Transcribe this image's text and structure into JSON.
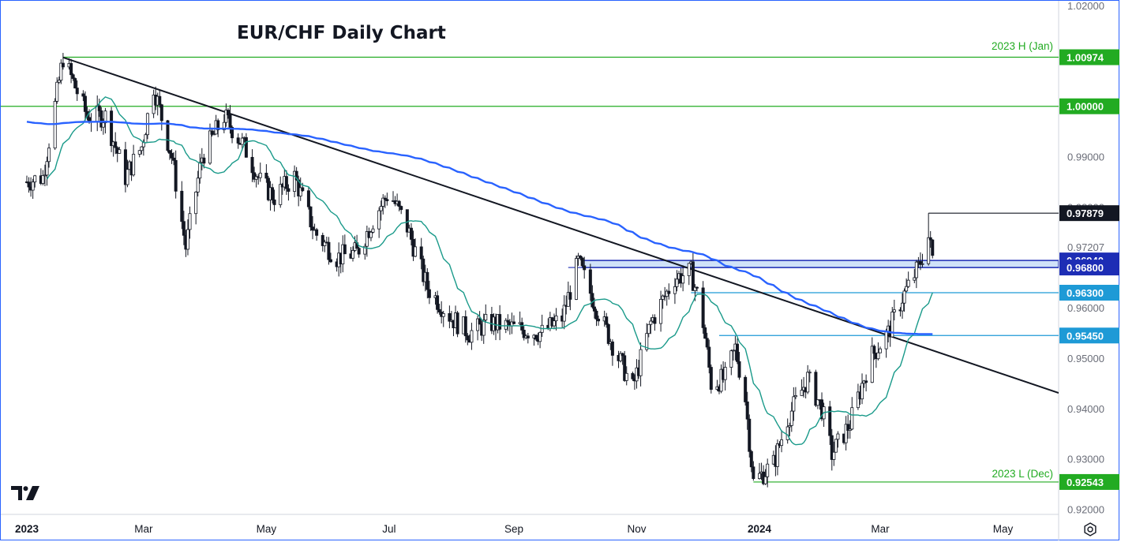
{
  "chart_data": {
    "type": "candlestick",
    "title": "EUR/CHF Daily Chart",
    "ylim": [
      0.915,
      1.02
    ],
    "y_ticks": [
      "1.02000",
      "0.99000",
      "0.98000",
      "0.97207",
      "0.96000",
      "0.95000",
      "0.94000",
      "0.93000",
      "0.92000"
    ],
    "x_ticks": [
      {
        "label": "2023",
        "bold": true
      },
      {
        "label": "Mar",
        "bold": false
      },
      {
        "label": "May",
        "bold": false
      },
      {
        "label": "Jul",
        "bold": false
      },
      {
        "label": "Sep",
        "bold": false
      },
      {
        "label": "Nov",
        "bold": false
      },
      {
        "label": "2024",
        "bold": true
      },
      {
        "label": "Mar",
        "bold": false
      },
      {
        "label": "May",
        "bold": false
      }
    ],
    "levels": [
      {
        "value": "1.00974",
        "color": "#22ab22",
        "style": "line"
      },
      {
        "value": "1.00000",
        "color": "#22ab22",
        "style": "line"
      },
      {
        "value": "0.97879",
        "color": "#131722",
        "style": "line"
      },
      {
        "value": "0.96940",
        "color": "#1d2db5",
        "style": "zone"
      },
      {
        "value": "0.96800",
        "color": "#1d2db5",
        "style": "zone"
      },
      {
        "value": "0.96300",
        "color": "#1e9ad6",
        "style": "line"
      },
      {
        "value": "0.95450",
        "color": "#1e9ad6",
        "style": "line"
      },
      {
        "value": "0.92543",
        "color": "#22ab22",
        "style": "line"
      }
    ],
    "annotations": [
      {
        "text": "2023 H (Jan)",
        "color": "#22ab22"
      },
      {
        "text": "2023 L (Dec)",
        "color": "#22ab22"
      }
    ],
    "ma_slow_color": "#2962ff",
    "ma_fast_color": "#1a9a8a",
    "trendline_color": "#131722",
    "up_color": "#ffffff",
    "down_color": "#131722",
    "path_points": [
      [
        "2023-01-02",
        0.985
      ],
      [
        "2023-01-10",
        0.986
      ],
      [
        "2023-01-20",
        1.0097
      ],
      [
        "2023-02-01",
        0.998
      ],
      [
        "2023-02-10",
        0.998
      ],
      [
        "2023-02-20",
        0.986
      ],
      [
        "2023-02-28",
        0.992
      ],
      [
        "2023-03-06",
        1.004
      ],
      [
        "2023-03-15",
        0.99
      ],
      [
        "2023-03-22",
        0.972
      ],
      [
        "2023-03-30",
        0.99
      ],
      [
        "2023-04-10",
        0.998
      ],
      [
        "2023-04-20",
        0.992
      ],
      [
        "2023-04-28",
        0.985
      ],
      [
        "2023-05-05",
        0.982
      ],
      [
        "2023-05-15",
        0.986
      ],
      [
        "2023-05-25",
        0.975
      ],
      [
        "2023-06-05",
        0.97
      ],
      [
        "2023-06-15",
        0.971
      ],
      [
        "2023-06-25",
        0.979
      ],
      [
        "2023-07-01",
        0.983
      ],
      [
        "2023-07-10",
        0.976
      ],
      [
        "2023-07-20",
        0.964
      ],
      [
        "2023-08-01",
        0.958
      ],
      [
        "2023-08-10",
        0.955
      ],
      [
        "2023-08-20",
        0.957
      ],
      [
        "2023-09-01",
        0.956
      ],
      [
        "2023-09-15",
        0.955
      ],
      [
        "2023-09-25",
        0.958
      ],
      [
        "2023-10-03",
        0.969
      ],
      [
        "2023-10-12",
        0.96
      ],
      [
        "2023-10-22",
        0.951
      ],
      [
        "2023-10-30",
        0.944
      ],
      [
        "2023-11-08",
        0.957
      ],
      [
        "2023-11-20",
        0.966
      ],
      [
        "2023-11-28",
        0.967
      ],
      [
        "2023-12-03",
        0.96
      ],
      [
        "2023-12-08",
        0.945
      ],
      [
        "2023-12-15",
        0.946
      ],
      [
        "2023-12-20",
        0.952
      ],
      [
        "2023-12-25",
        0.942
      ],
      [
        "2023-12-29",
        0.9254
      ],
      [
        "2024-01-08",
        0.929
      ],
      [
        "2024-01-15",
        0.938
      ],
      [
        "2024-01-25",
        0.946
      ],
      [
        "2024-02-01",
        0.94
      ],
      [
        "2024-02-06",
        0.931
      ],
      [
        "2024-02-15",
        0.937
      ],
      [
        "2024-02-25",
        0.95
      ],
      [
        "2024-03-05",
        0.955
      ],
      [
        "2024-03-12",
        0.962
      ],
      [
        "2024-03-20",
        0.968
      ],
      [
        "2024-03-25",
        0.974
      ],
      [
        "2024-03-27",
        0.97
      ]
    ]
  }
}
